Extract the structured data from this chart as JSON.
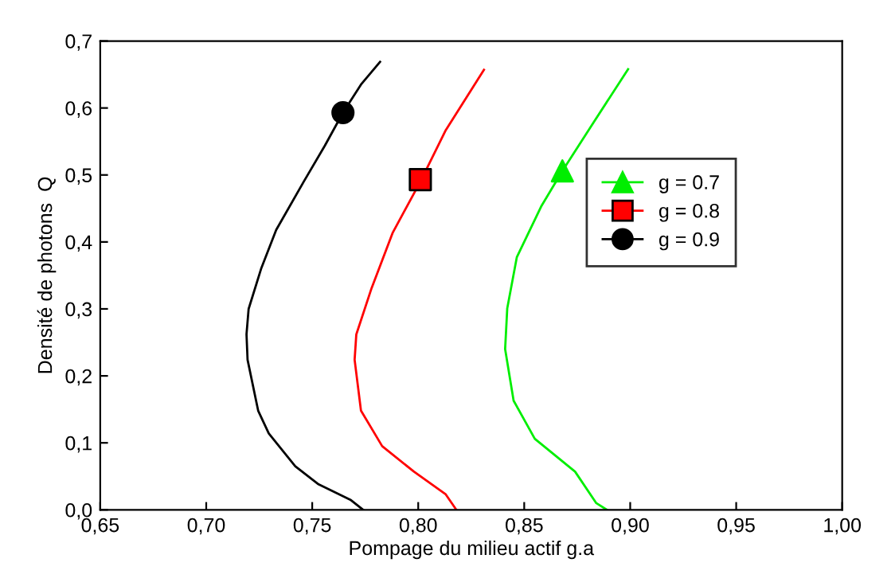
{
  "chart_data": {
    "type": "line",
    "xlabel": "Pompage du milieu actif g.a",
    "ylabel": "Densité de photons  Q",
    "xlim": [
      0.65,
      1.0
    ],
    "ylim": [
      0.0,
      0.7
    ],
    "xticks": [
      {
        "value": 0.65,
        "label": "0,65"
      },
      {
        "value": 0.7,
        "label": "0,70"
      },
      {
        "value": 0.75,
        "label": "0,75"
      },
      {
        "value": 0.8,
        "label": "0,80"
      },
      {
        "value": 0.85,
        "label": "0,85"
      },
      {
        "value": 0.9,
        "label": "0,90"
      },
      {
        "value": 0.95,
        "label": "0,95"
      },
      {
        "value": 1.0,
        "label": "1,00"
      }
    ],
    "yticks": [
      {
        "value": 0.0,
        "label": "0,0"
      },
      {
        "value": 0.1,
        "label": "0,1"
      },
      {
        "value": 0.2,
        "label": "0,2"
      },
      {
        "value": 0.3,
        "label": "0,3"
      },
      {
        "value": 0.4,
        "label": "0,4"
      },
      {
        "value": 0.5,
        "label": "0,5"
      },
      {
        "value": 0.6,
        "label": "0,6"
      },
      {
        "value": 0.7,
        "label": "0,7"
      }
    ],
    "grid": false,
    "legend": "top right",
    "series": [
      {
        "name": "g = 0.7",
        "color": "#00ee00",
        "x": [
          0.889,
          0.884,
          0.874,
          0.855,
          0.845,
          0.841,
          0.842,
          0.8465,
          0.858,
          0.868,
          0.882,
          0.899
        ],
        "values": [
          0.0,
          0.01,
          0.057,
          0.106,
          0.163,
          0.24,
          0.301,
          0.377,
          0.453,
          0.506,
          0.575,
          0.658
        ]
      },
      {
        "type": "scatter",
        "marker": "triangle",
        "color": "#00ee00",
        "x": [
          0.868
        ],
        "values": [
          0.506
        ]
      },
      {
        "name": "g = 0.8",
        "color": "#ff0000",
        "x": [
          0.818,
          0.813,
          0.798,
          0.783,
          0.773,
          0.77,
          0.7708,
          0.778,
          0.788,
          0.801,
          0.813,
          0.831
        ],
        "values": [
          0.0,
          0.023,
          0.057,
          0.095,
          0.148,
          0.224,
          0.262,
          0.331,
          0.414,
          0.49,
          0.567,
          0.657
        ]
      },
      {
        "type": "scatter",
        "marker": "square",
        "color": "#ff0000",
        "x": [
          0.801
        ],
        "values": [
          0.493
        ]
      },
      {
        "name": "g = 0.9",
        "color": "#000000",
        "x": [
          0.774,
          0.768,
          0.753,
          0.742,
          0.7295,
          0.7245,
          0.7195,
          0.719,
          0.72,
          0.726,
          0.733,
          0.746,
          0.756,
          0.7645,
          0.773,
          0.782
        ],
        "values": [
          0.0,
          0.015,
          0.038,
          0.065,
          0.114,
          0.148,
          0.224,
          0.262,
          0.3,
          0.361,
          0.418,
          0.49,
          0.544,
          0.593,
          0.635,
          0.669
        ]
      },
      {
        "type": "scatter",
        "marker": "circle",
        "color": "#000000",
        "x": [
          0.7645
        ],
        "values": [
          0.593
        ]
      }
    ]
  }
}
